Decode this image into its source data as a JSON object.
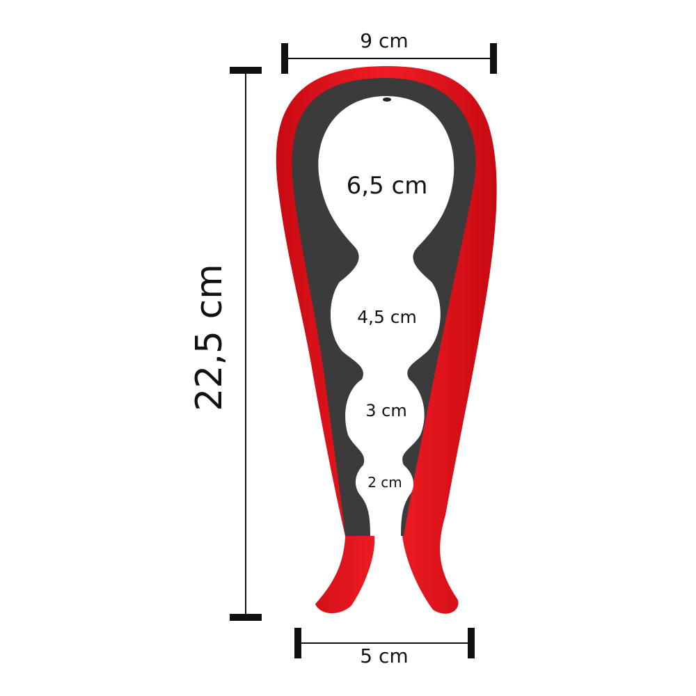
{
  "product": {
    "icon": "jar-opener-icon",
    "colors": {
      "grip": "#e8141c",
      "body": "#3b3b3b",
      "background": "#ffffff",
      "ink": "#111111"
    }
  },
  "dimensions": {
    "top_width": "9 cm",
    "bottom_width": "5 cm",
    "total_height": "22,5 cm",
    "openings": [
      "6,5 cm",
      "4,5 cm",
      "3 cm",
      "2 cm"
    ]
  }
}
